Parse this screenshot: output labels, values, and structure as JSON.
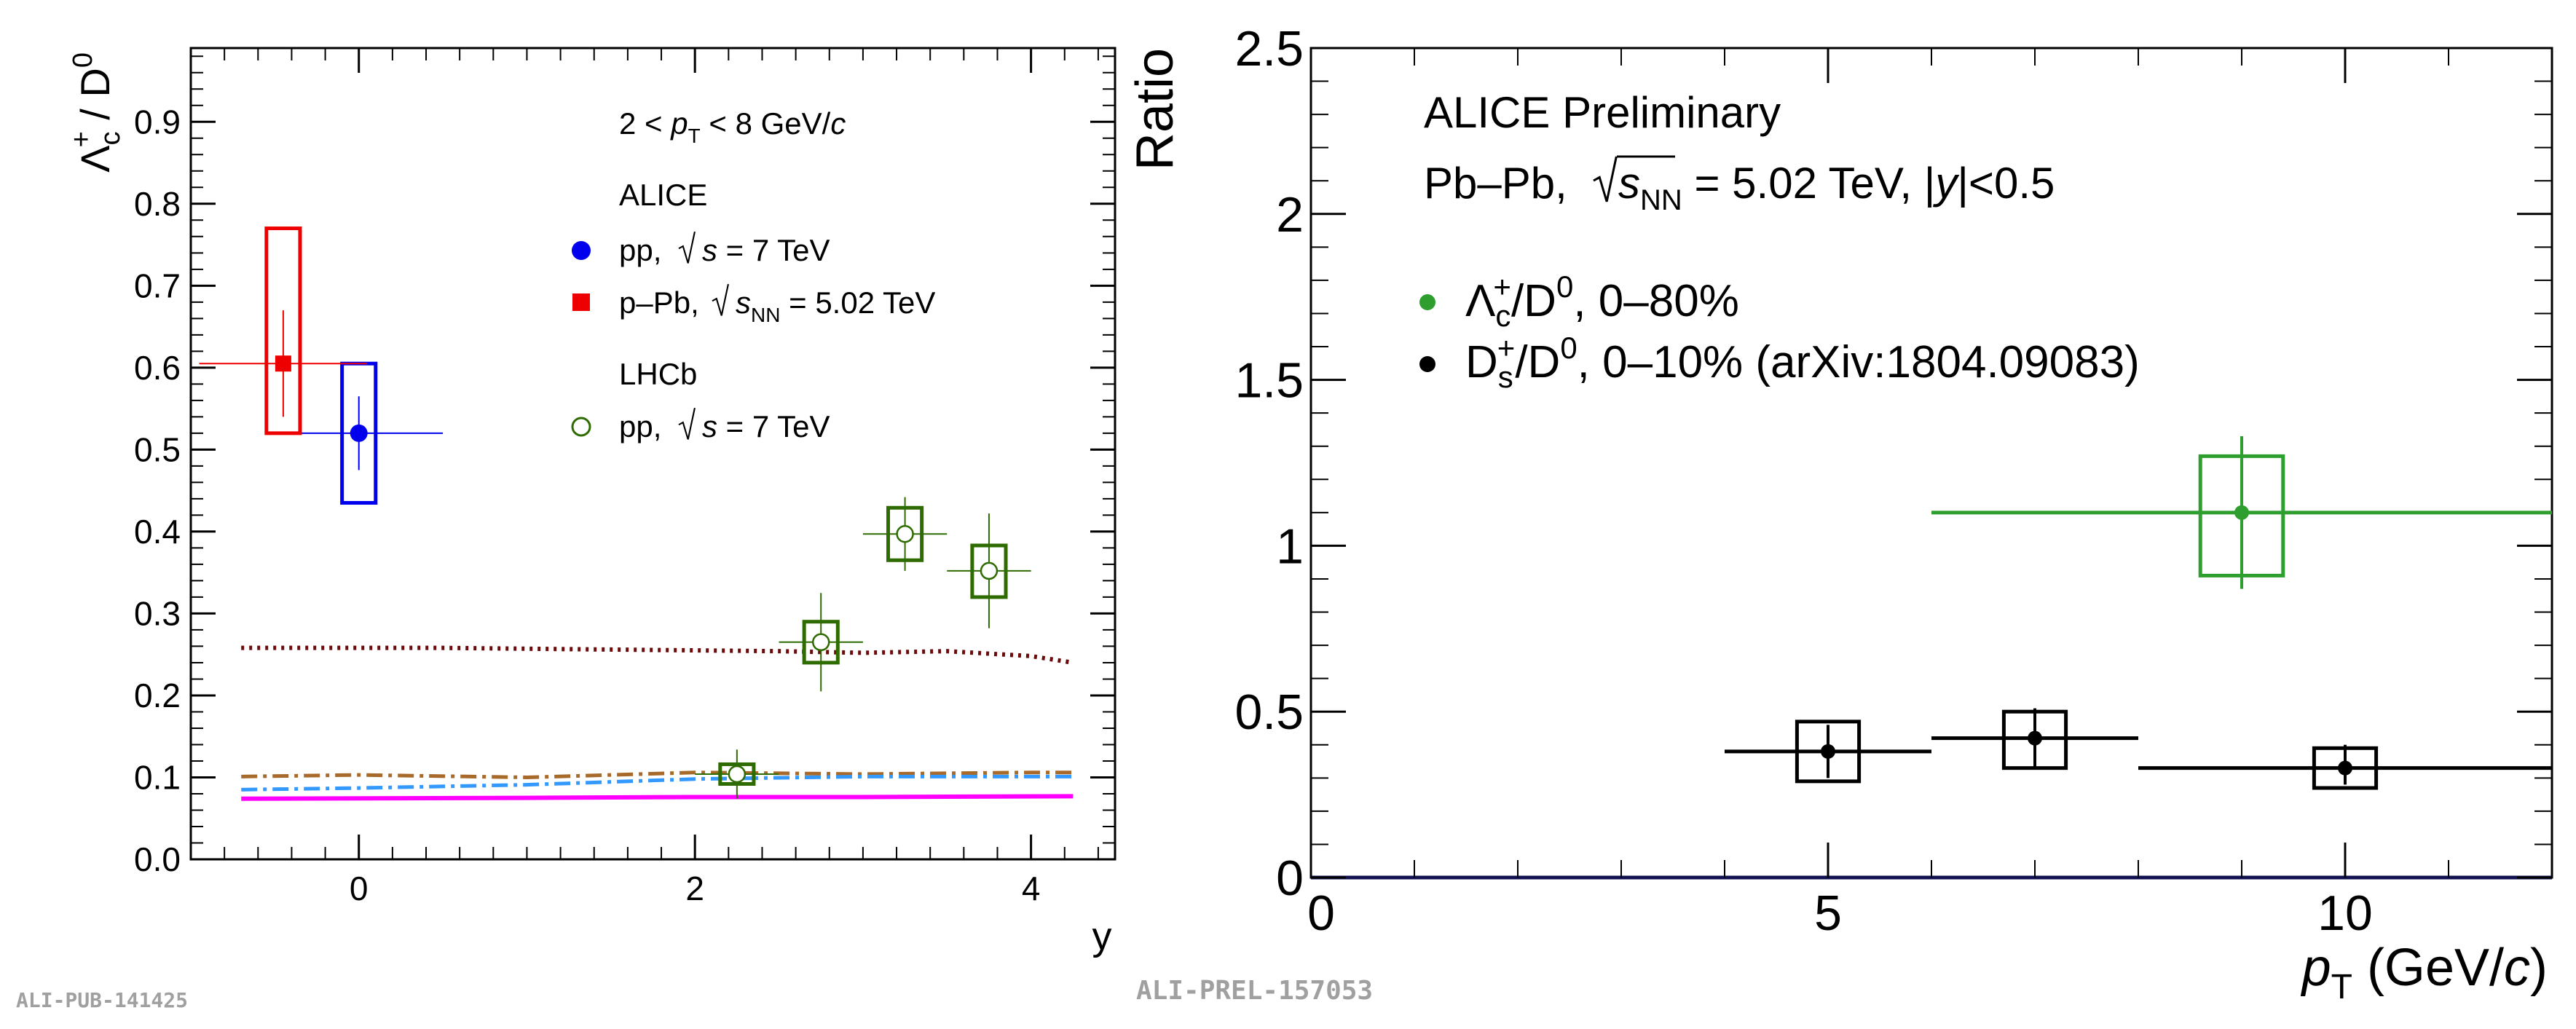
{
  "chart_data": [
    {
      "type": "scatter",
      "title": "",
      "xlabel": "y",
      "ylabel": "Λc+ / D0",
      "xlim": [
        -1.0,
        4.5
      ],
      "ylim": [
        0.0,
        0.99
      ],
      "x_ticks": [
        "0",
        "2",
        "4"
      ],
      "y_ticks": [
        "0.0",
        "0.1",
        "0.2",
        "0.3",
        "0.4",
        "0.5",
        "0.6",
        "0.7",
        "0.8",
        "0.9"
      ],
      "legend": {
        "header": "2 < pT < 8 GeV/c",
        "groups": [
          {
            "label": "ALICE",
            "entries": [
              "pp, √s = 7 TeV",
              "p–Pb, √sNN = 5.02 TeV"
            ]
          },
          {
            "label": "LHCb",
            "entries": [
              "pp, √s = 7 TeV"
            ]
          }
        ]
      },
      "series": [
        {
          "name": "ALICE pp, √s = 7 TeV",
          "color": "#0000ee",
          "marker": "filled-circle",
          "points": [
            {
              "x": 0.0,
              "y": 0.52,
              "xerr": 0.5,
              "stat": 0.045,
              "syst_lo": 0.435,
              "syst_hi": 0.605,
              "box_half_width": 0.1
            }
          ]
        },
        {
          "name": "ALICE p–Pb, √sNN = 5.02 TeV",
          "color": "#ee0000",
          "marker": "filled-square",
          "points": [
            {
              "x": -0.45,
              "y": 0.605,
              "xerr": 0.5,
              "stat": 0.065,
              "syst_lo": 0.52,
              "syst_hi": 0.77,
              "box_half_width": 0.1
            }
          ]
        },
        {
          "name": "LHCb pp, √s = 7 TeV",
          "color": "#2e6b00",
          "marker": "open-circle",
          "points": [
            {
              "x": 2.25,
              "y": 0.104,
              "xerr": 0.25,
              "stat": 0.03,
              "syst_lo": 0.092,
              "syst_hi": 0.116,
              "box_half_width": 0.1
            },
            {
              "x": 2.75,
              "y": 0.265,
              "xerr": 0.25,
              "stat": 0.06,
              "syst_lo": 0.24,
              "syst_hi": 0.29,
              "box_half_width": 0.1
            },
            {
              "x": 3.25,
              "y": 0.397,
              "xerr": 0.25,
              "stat": 0.045,
              "syst_lo": 0.365,
              "syst_hi": 0.429,
              "box_half_width": 0.1
            },
            {
              "x": 3.75,
              "y": 0.352,
              "xerr": 0.25,
              "stat": 0.07,
              "syst_lo": 0.32,
              "syst_hi": 0.383,
              "box_half_width": 0.1
            }
          ]
        }
      ],
      "curves": [
        {
          "color": "#6b0a0a",
          "style": "dotted",
          "x": [
            -0.7,
            0.5,
            1.5,
            2.5,
            3.0,
            3.5,
            4.0,
            4.25
          ],
          "y": [
            0.258,
            0.258,
            0.256,
            0.254,
            0.252,
            0.254,
            0.248,
            0.24
          ]
        },
        {
          "color": "#a86a2a",
          "style": "dashdot",
          "x": [
            -0.7,
            0.0,
            1.0,
            2.0,
            3.0,
            4.0,
            4.25
          ],
          "y": [
            0.101,
            0.103,
            0.1,
            0.106,
            0.104,
            0.106,
            0.106
          ]
        },
        {
          "color": "#3399ff",
          "style": "dashdot",
          "x": [
            -0.7,
            0.0,
            1.0,
            2.0,
            3.0,
            4.0,
            4.25
          ],
          "y": [
            0.085,
            0.087,
            0.091,
            0.098,
            0.101,
            0.101,
            0.101
          ]
        },
        {
          "color": "#ff00ff",
          "style": "solid",
          "x": [
            -0.7,
            1.0,
            2.0,
            3.0,
            4.25
          ],
          "y": [
            0.074,
            0.075,
            0.076,
            0.076,
            0.077
          ]
        }
      ],
      "watermark": "ALI-PUB-141425"
    },
    {
      "type": "scatter",
      "title": "",
      "xlabel": "pT (GeV/c)",
      "ylabel": "Ratio",
      "xlim": [
        0,
        12
      ],
      "ylim": [
        0,
        2.5
      ],
      "x_ticks": [
        "0",
        "5",
        "10"
      ],
      "y_ticks": [
        "0",
        "0.5",
        "1",
        "1.5",
        "2",
        "2.5"
      ],
      "annotations": [
        "ALICE Preliminary",
        "Pb–Pb, √sNN = 5.02 TeV, |y|<0.5"
      ],
      "series": [
        {
          "name": "Λc+/D0, 0–80%",
          "color": "#2e9e2e",
          "marker": "filled-circle",
          "points": [
            {
              "x": 9.0,
              "y": 1.1,
              "x_lo": 6.0,
              "x_hi": 12.0,
              "stat_lo": 0.87,
              "stat_hi": 1.33,
              "syst_lo": 0.91,
              "syst_hi": 1.27,
              "box_half_width": 0.4
            }
          ]
        },
        {
          "name": "Ds+/D0, 0–10% (arXiv:1804.09083)",
          "color": "#000000",
          "marker": "filled-circle",
          "points": [
            {
              "x": 5.0,
              "y": 0.38,
              "x_lo": 4.0,
              "x_hi": 6.0,
              "stat_lo": 0.3,
              "stat_hi": 0.46,
              "syst_lo": 0.29,
              "syst_hi": 0.47,
              "box_half_width": 0.3
            },
            {
              "x": 7.0,
              "y": 0.42,
              "x_lo": 6.0,
              "x_hi": 8.0,
              "stat_lo": 0.33,
              "stat_hi": 0.51,
              "syst_lo": 0.33,
              "syst_hi": 0.5,
              "box_half_width": 0.3
            },
            {
              "x": 10.0,
              "y": 0.33,
              "x_lo": 8.0,
              "x_hi": 12.0,
              "stat_lo": 0.28,
              "stat_hi": 0.4,
              "syst_lo": 0.27,
              "syst_hi": 0.39,
              "box_half_width": 0.3
            }
          ]
        }
      ],
      "watermark": "ALI-PREL-157053"
    }
  ]
}
